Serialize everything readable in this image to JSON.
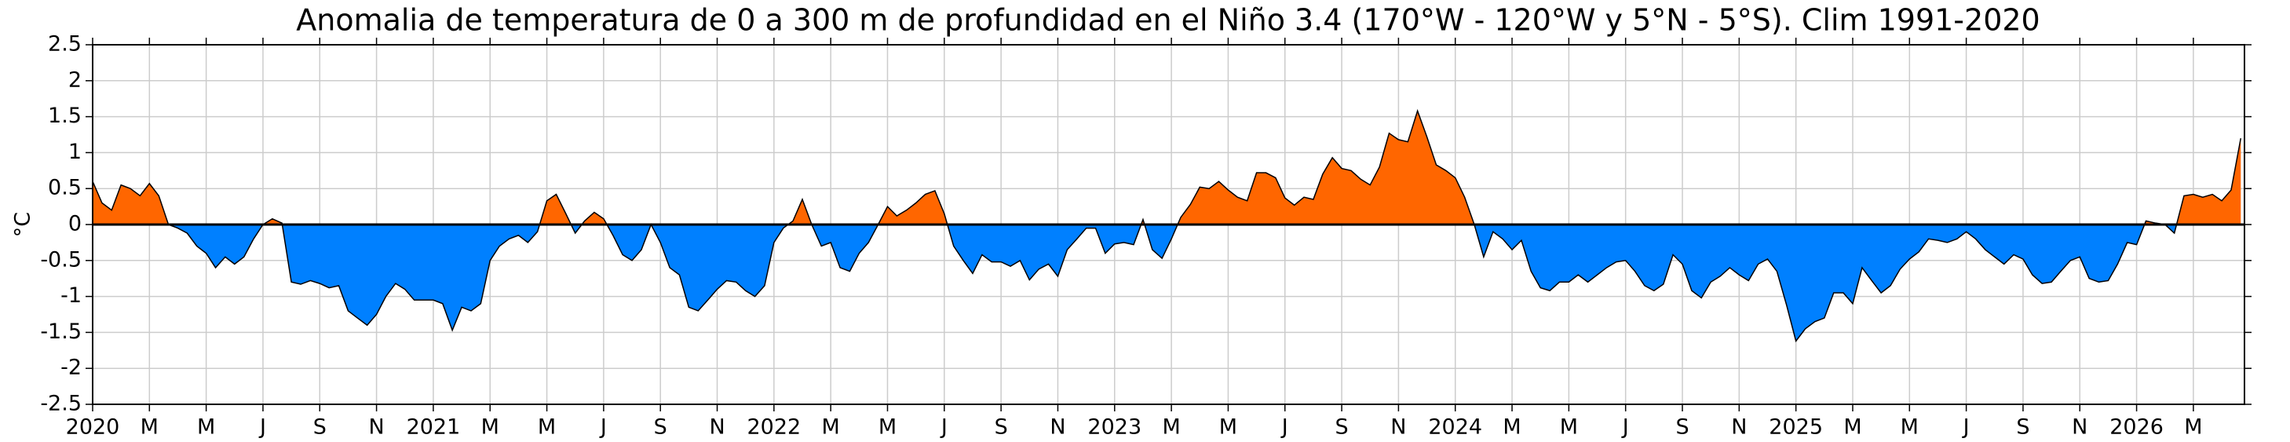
{
  "chart_data": {
    "type": "area",
    "title": "Anomalia de temperatura de 0 a 300 m de profundidad en el Niño 3.4 (170°W - 120°W y 5°N - 5°S). Clim 1991-2020",
    "y_label": "°C",
    "positive_color": "#ff6600",
    "negative_color": "#0080ff",
    "line_color": "#000000",
    "grid": true,
    "xlim": [
      0,
      75.8
    ],
    "ylim": [
      -2.5,
      2.5
    ],
    "yticks": [
      2.5,
      2,
      1.5,
      1,
      0.5,
      0,
      -0.5,
      -1,
      -1.5,
      -2,
      -2.5
    ],
    "xticks": [
      {
        "value": 0,
        "label": "2020"
      },
      {
        "value": 2,
        "label": "M"
      },
      {
        "value": 4,
        "label": "M"
      },
      {
        "value": 6,
        "label": "J"
      },
      {
        "value": 8,
        "label": "S"
      },
      {
        "value": 10,
        "label": "N"
      },
      {
        "value": 12,
        "label": "2021"
      },
      {
        "value": 14,
        "label": "M"
      },
      {
        "value": 16,
        "label": "M"
      },
      {
        "value": 18,
        "label": "J"
      },
      {
        "value": 20,
        "label": "S"
      },
      {
        "value": 22,
        "label": "N"
      },
      {
        "value": 24,
        "label": "2022"
      },
      {
        "value": 26,
        "label": "M"
      },
      {
        "value": 28,
        "label": "M"
      },
      {
        "value": 30,
        "label": "J"
      },
      {
        "value": 32,
        "label": "S"
      },
      {
        "value": 34,
        "label": "N"
      },
      {
        "value": 36,
        "label": "2023"
      },
      {
        "value": 38,
        "label": "M"
      },
      {
        "value": 40,
        "label": "M"
      },
      {
        "value": 42,
        "label": "J"
      },
      {
        "value": 44,
        "label": "S"
      },
      {
        "value": 46,
        "label": "N"
      },
      {
        "value": 48,
        "label": "2024"
      },
      {
        "value": 50,
        "label": "M"
      },
      {
        "value": 52,
        "label": "M"
      },
      {
        "value": 54,
        "label": "J"
      },
      {
        "value": 56,
        "label": "S"
      },
      {
        "value": 58,
        "label": "N"
      },
      {
        "value": 60,
        "label": "2025"
      },
      {
        "value": 62,
        "label": "M"
      },
      {
        "value": 64,
        "label": "M"
      },
      {
        "value": 66,
        "label": "J"
      },
      {
        "value": 68,
        "label": "S"
      },
      {
        "value": 70,
        "label": "N"
      },
      {
        "value": 72,
        "label": "2026"
      },
      {
        "value": 74,
        "label": "M"
      }
    ],
    "x": [
      0,
      0.33,
      0.67,
      1,
      1.33,
      1.67,
      2,
      2.33,
      2.67,
      3,
      3.33,
      3.67,
      4,
      4.33,
      4.67,
      5,
      5.33,
      5.67,
      6,
      6.33,
      6.67,
      7,
      7.33,
      7.67,
      8,
      8.33,
      8.67,
      9,
      9.33,
      9.67,
      10,
      10.33,
      10.67,
      11,
      11.33,
      11.67,
      12,
      12.33,
      12.67,
      13,
      13.33,
      13.67,
      14,
      14.33,
      14.67,
      15,
      15.33,
      15.67,
      16,
      16.33,
      16.67,
      17,
      17.33,
      17.67,
      18,
      18.33,
      18.67,
      19,
      19.33,
      19.67,
      20,
      20.33,
      20.67,
      21,
      21.33,
      21.67,
      22,
      22.33,
      22.67,
      23,
      23.33,
      23.67,
      24,
      24.33,
      24.67,
      25,
      25.33,
      25.67,
      26,
      26.33,
      26.67,
      27,
      27.33,
      27.67,
      28,
      28.33,
      28.67,
      29,
      29.33,
      29.67,
      30,
      30.33,
      30.67,
      31,
      31.33,
      31.67,
      32,
      32.33,
      32.67,
      33,
      33.33,
      33.67,
      34,
      34.33,
      34.67,
      35,
      35.33,
      35.67,
      36,
      36.33,
      36.67,
      37,
      37.33,
      37.67,
      38,
      38.33,
      38.67,
      39,
      39.33,
      39.67,
      40,
      40.33,
      40.67,
      41,
      41.33,
      41.67,
      42,
      42.33,
      42.67,
      43,
      43.33,
      43.67,
      44,
      44.33,
      44.67,
      45,
      45.33,
      45.67,
      46,
      46.33,
      46.67,
      47,
      47.33,
      47.67,
      48,
      48.33,
      48.67,
      49,
      49.33,
      49.67,
      50,
      50.33,
      50.67,
      51,
      51.33,
      51.67,
      52,
      52.33,
      52.67,
      53,
      53.33,
      53.67,
      54,
      54.33,
      54.67,
      55,
      55.33,
      55.67,
      56,
      56.33,
      56.67,
      57,
      57.33,
      57.67,
      58,
      58.33,
      58.67,
      59,
      59.33,
      59.67,
      60,
      60.33,
      60.67,
      61,
      61.33,
      61.67,
      62,
      62.33,
      62.67,
      63,
      63.33,
      63.67,
      64,
      64.33,
      64.67,
      65,
      65.33,
      65.67,
      66,
      66.33,
      66.67,
      67,
      67.33,
      67.67,
      68,
      68.33,
      68.67,
      69,
      69.33,
      69.67,
      70,
      70.33,
      70.67,
      71,
      71.33,
      71.67,
      72,
      72.33,
      72.67,
      73,
      73.33,
      73.67,
      74,
      74.33,
      74.67,
      75,
      75.33,
      75.67
    ],
    "values": [
      0.6,
      0.3,
      0.2,
      0.55,
      0.5,
      0.4,
      0.57,
      0.4,
      0,
      -0.05,
      -0.12,
      -0.3,
      -0.4,
      -0.6,
      -0.45,
      -0.55,
      -0.45,
      -0.2,
      0,
      0.08,
      0.02,
      -0.8,
      -0.83,
      -0.78,
      -0.82,
      -0.88,
      -0.85,
      -1.2,
      -1.3,
      -1.4,
      -1.25,
      -1,
      -0.82,
      -0.9,
      -1.05,
      -1.05,
      -1.05,
      -1.1,
      -1.47,
      -1.15,
      -1.2,
      -1.1,
      -0.5,
      -0.3,
      -0.2,
      -0.15,
      -0.25,
      -0.1,
      0.33,
      0.42,
      0.15,
      -0.12,
      0.05,
      0.17,
      0.08,
      -0.15,
      -0.42,
      -0.5,
      -0.35,
      0,
      -0.25,
      -0.6,
      -0.7,
      -1.15,
      -1.2,
      -1.05,
      -0.9,
      -0.78,
      -0.8,
      -0.92,
      -1,
      -0.85,
      -0.25,
      -0.05,
      0.05,
      0.35,
      0,
      -0.3,
      -0.25,
      -0.6,
      -0.65,
      -0.4,
      -0.25,
      0,
      0.25,
      0.12,
      0.2,
      0.3,
      0.42,
      0.47,
      0.15,
      -0.3,
      -0.5,
      -0.68,
      -0.42,
      -0.52,
      -0.52,
      -0.58,
      -0.5,
      -0.77,
      -0.62,
      -0.55,
      -0.72,
      -0.35,
      -0.2,
      -0.05,
      -0.05,
      -0.4,
      -0.27,
      -0.25,
      -0.28,
      0.07,
      -0.35,
      -0.47,
      -0.2,
      0.1,
      0.28,
      0.52,
      0.5,
      0.6,
      0.48,
      0.38,
      0.33,
      0.72,
      0.72,
      0.65,
      0.37,
      0.27,
      0.38,
      0.35,
      0.7,
      0.93,
      0.78,
      0.75,
      0.63,
      0.55,
      0.8,
      1.27,
      1.18,
      1.15,
      1.58,
      1.22,
      0.83,
      0.75,
      0.65,
      0.38,
      0,
      -0.45,
      -0.1,
      -0.2,
      -0.35,
      -0.22,
      -0.65,
      -0.88,
      -0.92,
      -0.8,
      -0.8,
      -0.7,
      -0.8,
      -0.7,
      -0.6,
      -0.52,
      -0.5,
      -0.65,
      -0.85,
      -0.92,
      -0.83,
      -0.42,
      -0.55,
      -0.92,
      -1.02,
      -0.8,
      -0.72,
      -0.6,
      -0.7,
      -0.78,
      -0.55,
      -0.48,
      -0.65,
      -1.12,
      -1.62,
      -1.45,
      -1.35,
      -1.3,
      -0.95,
      -0.95,
      -1.1,
      -0.6,
      -0.78,
      -0.95,
      -0.85,
      -0.62,
      -0.48,
      -0.38,
      -0.2,
      -0.22,
      -0.25,
      -0.2,
      -0.1,
      -0.2,
      -0.35,
      -0.45,
      -0.55,
      -0.42,
      -0.48,
      -0.7,
      -0.82,
      -0.8,
      -0.65,
      -0.5,
      -0.45,
      -0.75,
      -0.8,
      -0.78,
      -0.55,
      -0.25,
      -0.28,
      0.05,
      0.02,
      0,
      -0.12,
      0.4,
      0.42,
      0.38,
      0.42,
      0.33,
      0.48,
      1.2
    ]
  }
}
